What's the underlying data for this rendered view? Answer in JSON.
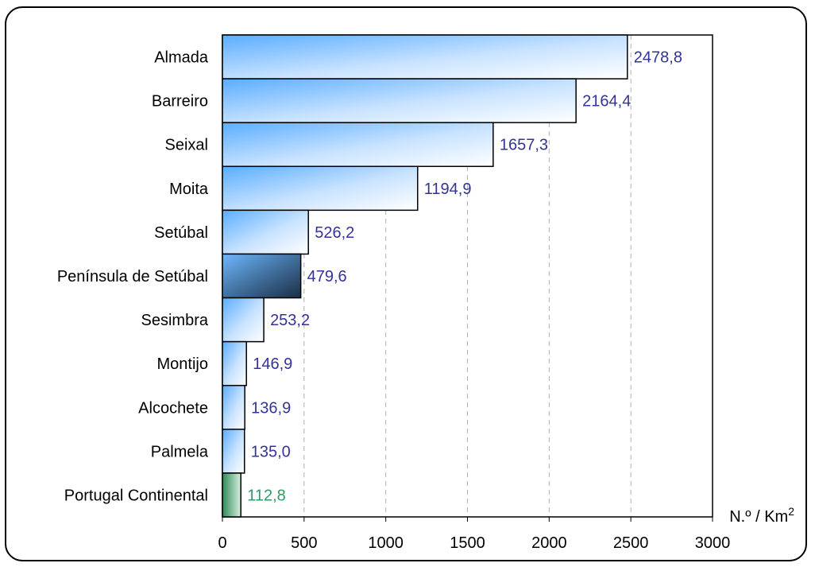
{
  "chart_data": {
    "type": "bar",
    "orientation": "horizontal",
    "title": "",
    "xlabel": "N.º / Km",
    "xlabel_superscript": "2",
    "ylabel": "",
    "xlim": [
      0,
      3000
    ],
    "xticks": [
      "0",
      "500",
      "1000",
      "1500",
      "2000",
      "2500",
      "3000"
    ],
    "grid": "vertical dashed",
    "legend": "none",
    "categories": [
      "Almada",
      "Barreiro",
      "Seixal",
      "Moita",
      "Setúbal",
      "Península de Setúbal",
      "Sesimbra",
      "Montijo",
      "Alcochete",
      "Palmela",
      "Portugal Continental"
    ],
    "values": [
      2478.8,
      2164.4,
      1657.3,
      1194.9,
      526.2,
      479.6,
      253.2,
      146.9,
      136.9,
      135.0,
      112.8
    ],
    "value_labels": [
      "2478,8",
      "2164,4",
      "1657,3",
      "1194,9",
      "526,2",
      "479,6",
      "253,2",
      "146,9",
      "136,9",
      "135,0",
      "112,8"
    ],
    "colors": {
      "municipality": "#4da6ff",
      "peninsula": "#1f3a5f",
      "portugal": "#2e8b57",
      "label_default": "#333399",
      "label_portugal": "#339966"
    }
  }
}
